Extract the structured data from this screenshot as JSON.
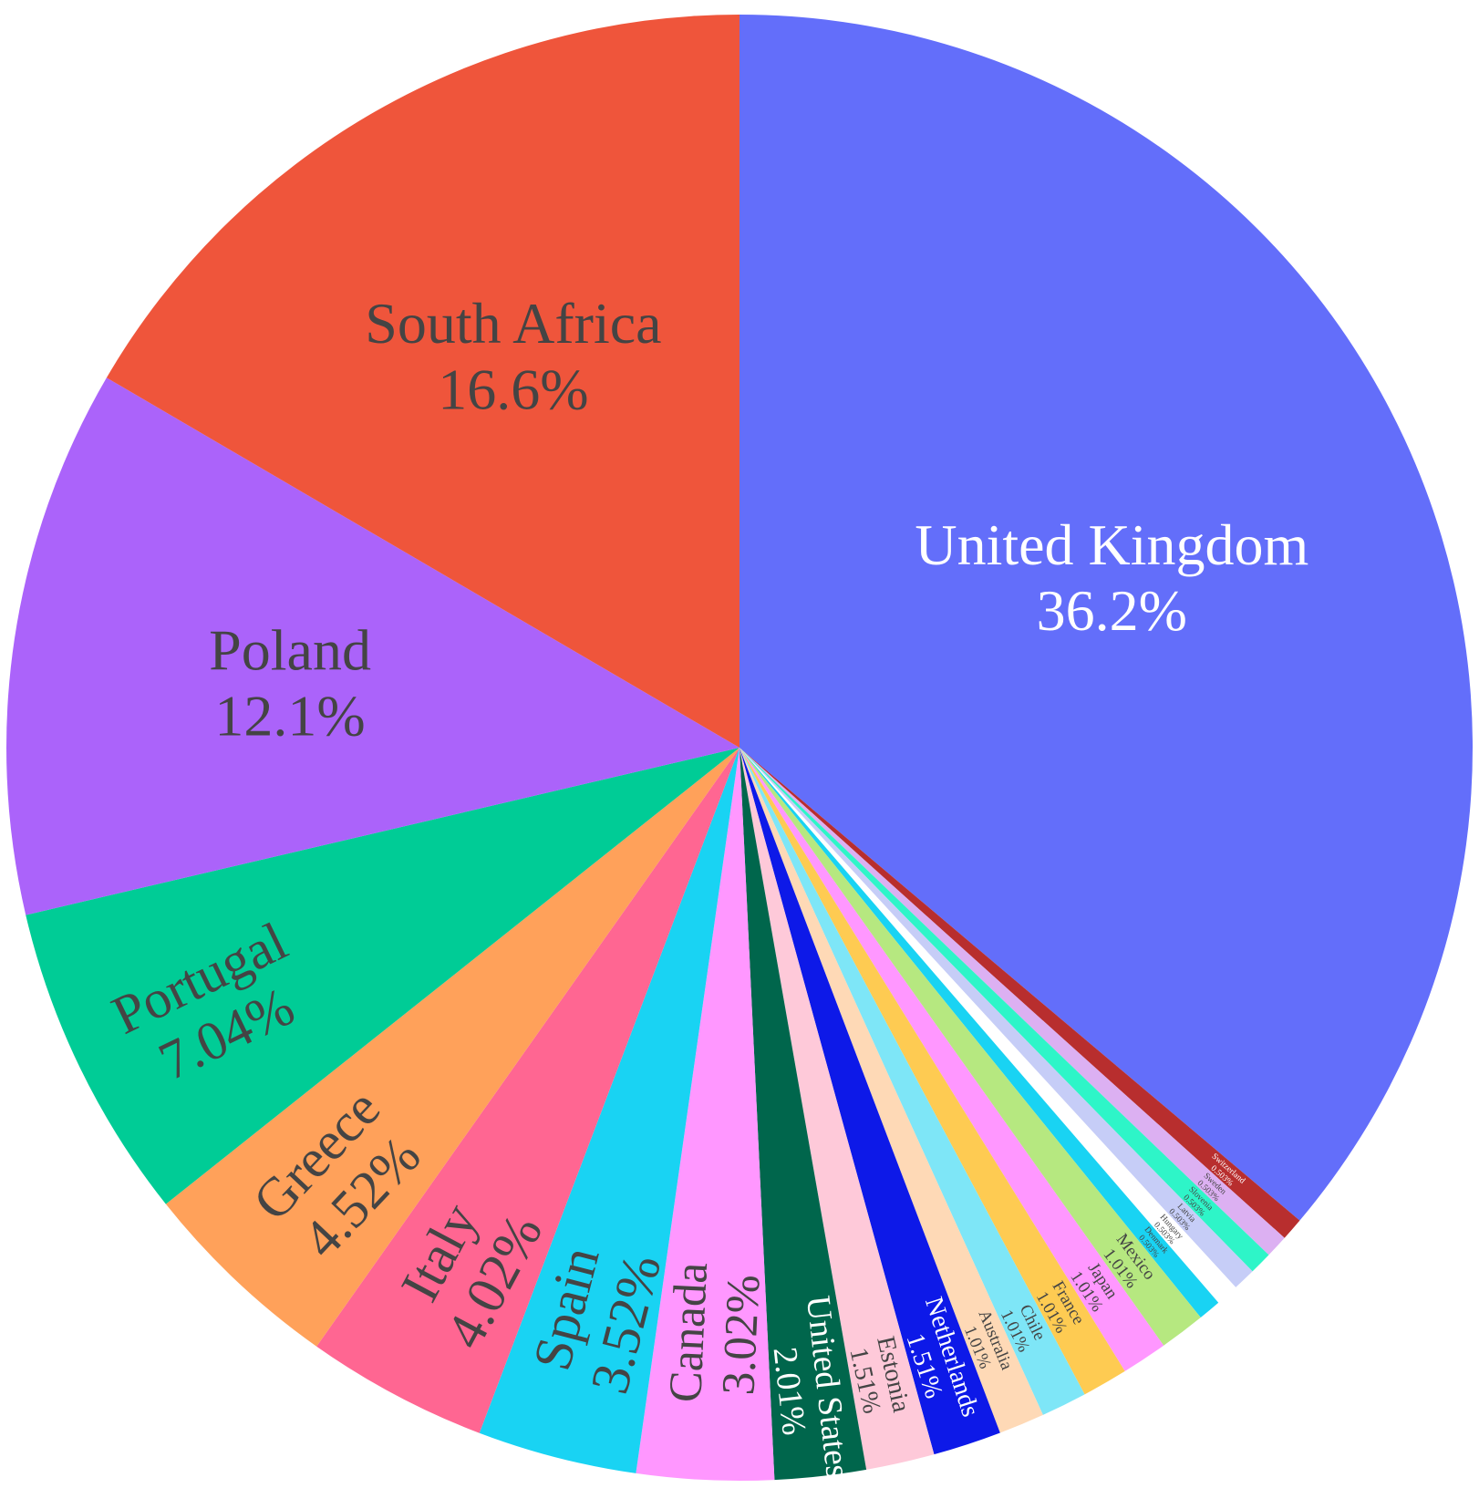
{
  "chart_data": {
    "type": "pie",
    "title": "",
    "direction": "clockwise",
    "start_angle_deg": 0,
    "slices": [
      {
        "label": "United Kingdom",
        "percent_label": "36.2%",
        "value": 36.2,
        "color": "#636efa",
        "text_color": "#ffffff"
      },
      {
        "label": "Switzerland",
        "percent_label": "0.503%",
        "value": 0.503,
        "color": "#b82e2e",
        "text_color": "#ffffff"
      },
      {
        "label": "Sweden",
        "percent_label": "0.503%",
        "value": 0.503,
        "color": "#dcb0f2",
        "text_color": "#444444"
      },
      {
        "label": "Slovenia",
        "percent_label": "0.503%",
        "value": 0.503,
        "color": "#2ef5c8",
        "text_color": "#444444"
      },
      {
        "label": "Latvia",
        "percent_label": "0.503%",
        "value": 0.503,
        "color": "#c6cdf7",
        "text_color": "#444444"
      },
      {
        "label": "Hungary",
        "percent_label": "0.503%",
        "value": 0.503,
        "color": "#ffffff",
        "text_color": "#444444"
      },
      {
        "label": "Denmark",
        "percent_label": "0.503%",
        "value": 0.503,
        "color": "#19d3f3",
        "text_color": "#444444"
      },
      {
        "label": "Mexico",
        "percent_label": "1.01%",
        "value": 1.01,
        "color": "#b6e880",
        "text_color": "#444444"
      },
      {
        "label": "Japan",
        "percent_label": "1.01%",
        "value": 1.01,
        "color": "#ff97ff",
        "text_color": "#444444"
      },
      {
        "label": "France",
        "percent_label": "1.01%",
        "value": 1.01,
        "color": "#fecb52",
        "text_color": "#444444"
      },
      {
        "label": "Chile",
        "percent_label": "1.01%",
        "value": 1.01,
        "color": "#7ee6f7",
        "text_color": "#444444"
      },
      {
        "label": "Australia",
        "percent_label": "1.01%",
        "value": 1.01,
        "color": "#fed9b6",
        "text_color": "#444444"
      },
      {
        "label": "Netherlands",
        "percent_label": "1.51%",
        "value": 1.51,
        "color": "#0d19e8",
        "text_color": "#ffffff"
      },
      {
        "label": "Estonia",
        "percent_label": "1.51%",
        "value": 1.51,
        "color": "#fec9d9",
        "text_color": "#444444"
      },
      {
        "label": "United States",
        "percent_label": "2.01%",
        "value": 2.01,
        "color": "#00664c",
        "text_color": "#ffffff"
      },
      {
        "label": "Canada",
        "percent_label": "3.02%",
        "value": 3.02,
        "color": "#ff97ff",
        "text_color": "#444444"
      },
      {
        "label": "Spain",
        "percent_label": "3.52%",
        "value": 3.52,
        "color": "#19d3f3",
        "text_color": "#444444"
      },
      {
        "label": "Italy",
        "percent_label": "4.02%",
        "value": 4.02,
        "color": "#ff6692",
        "text_color": "#444444"
      },
      {
        "label": "Greece",
        "percent_label": "4.52%",
        "value": 4.52,
        "color": "#ffa15a",
        "text_color": "#444444"
      },
      {
        "label": "Portugal",
        "percent_label": "7.04%",
        "value": 7.04,
        "color": "#00cc96",
        "text_color": "#444444"
      },
      {
        "label": "Poland",
        "percent_label": "12.1%",
        "value": 12.1,
        "color": "#ab63fa",
        "text_color": "#444444"
      },
      {
        "label": "South Africa",
        "percent_label": "16.6%",
        "value": 16.6,
        "color": "#ef553b",
        "text_color": "#444444"
      }
    ]
  }
}
